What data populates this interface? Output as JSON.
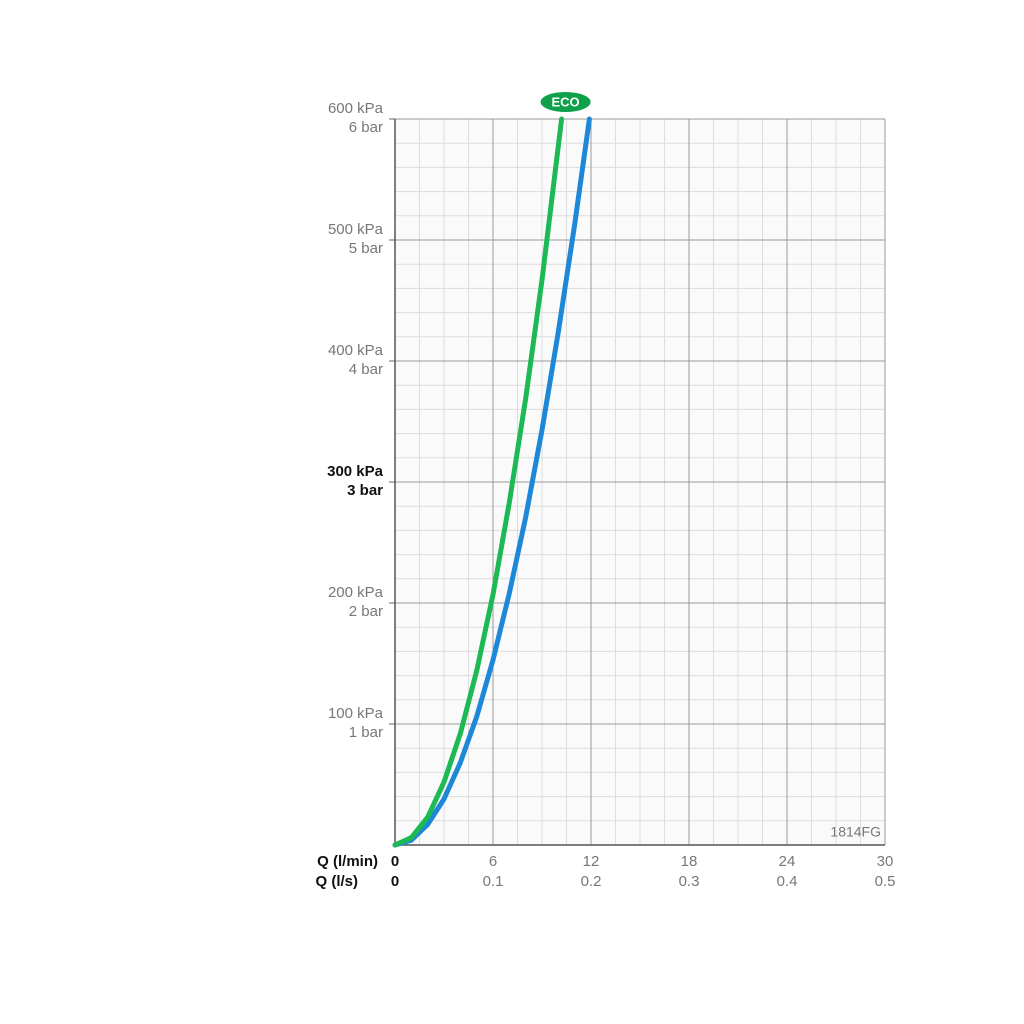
{
  "chart_data": {
    "type": "line",
    "annotation": "1814FG",
    "x_label": "Q (l/min)",
    "x2_label": "Q (l/s)",
    "xlim": [
      0,
      30
    ],
    "xticks": [
      0,
      6,
      12,
      18,
      24,
      30
    ],
    "x2lim": [
      0,
      0.5
    ],
    "x2ticks": [
      0,
      0.1,
      0.2,
      0.3,
      0.4,
      0.5
    ],
    "ylim": [
      0,
      600
    ],
    "yticks": [
      {
        "value": 100,
        "label": "100 kPa"
      },
      {
        "value": 200,
        "label": "200 kPa"
      },
      {
        "value": 300,
        "label": "300 kPa"
      },
      {
        "value": 400,
        "label": "400 kPa"
      },
      {
        "value": 500,
        "label": "500 kPa"
      },
      {
        "value": 600,
        "label": "600 kPa"
      }
    ],
    "y2lim": [
      0,
      6
    ],
    "y2ticks": [
      {
        "value": 1,
        "label": "1 bar"
      },
      {
        "value": 2,
        "label": "2 bar"
      },
      {
        "value": 3,
        "label": "3 bar"
      },
      {
        "value": 4,
        "label": "4 bar"
      },
      {
        "value": 5,
        "label": "5 bar"
      },
      {
        "value": 6,
        "label": "6 bar"
      }
    ],
    "emphasized_ytick": 300,
    "grid": true,
    "series": [
      {
        "name": "ECO",
        "color": "#1db954",
        "x": [
          0,
          1,
          2,
          3,
          4,
          5,
          6,
          7,
          8,
          9,
          10.2
        ],
        "values": [
          0,
          6,
          23,
          52,
          92,
          144,
          207,
          283,
          369,
          467,
          600
        ]
      },
      {
        "color": "#1e88d8",
        "x": [
          0,
          1,
          2,
          3,
          4,
          5,
          6,
          7,
          8,
          9,
          10,
          11,
          11.9
        ],
        "values": [
          0,
          4,
          17,
          38,
          68,
          106,
          153,
          208,
          271,
          343,
          424,
          513,
          600
        ]
      }
    ]
  }
}
